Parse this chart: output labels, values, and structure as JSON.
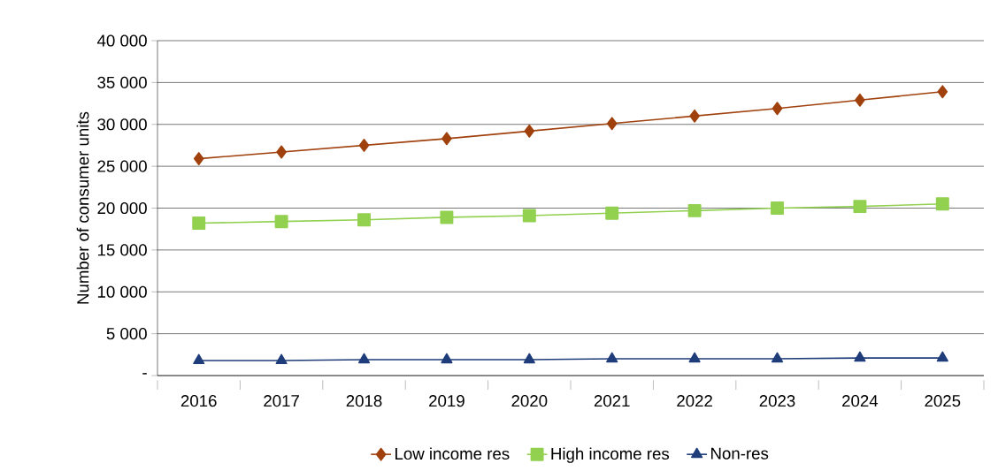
{
  "chart_data": {
    "type": "line",
    "ylabel": "Number of consumer units",
    "categories": [
      "2016",
      "2017",
      "2018",
      "2019",
      "2020",
      "2021",
      "2022",
      "2023",
      "2024",
      "2025"
    ],
    "series": [
      {
        "name": "Low income res",
        "color": "#a0410d",
        "marker": "diamond",
        "values": [
          25900,
          26700,
          27500,
          28300,
          29200,
          30100,
          31000,
          31900,
          32900,
          33900
        ]
      },
      {
        "name": "High income res",
        "color": "#92d050",
        "marker": "square",
        "values": [
          18200,
          18400,
          18600,
          18900,
          19100,
          19400,
          19700,
          20000,
          20200,
          20500
        ]
      },
      {
        "name": "Non-res",
        "color": "#1f3d7a",
        "marker": "triangle",
        "values": [
          1800,
          1800,
          1900,
          1900,
          1900,
          2000,
          2000,
          2000,
          2100,
          2100
        ]
      }
    ],
    "ylim": [
      0,
      40000
    ],
    "yticks": [
      {
        "value": 0,
        "label": "-"
      },
      {
        "value": 5000,
        "label": "5 000"
      },
      {
        "value": 10000,
        "label": "10 000"
      },
      {
        "value": 15000,
        "label": "15 000"
      },
      {
        "value": 20000,
        "label": "20 000"
      },
      {
        "value": 25000,
        "label": "25 000"
      },
      {
        "value": 30000,
        "label": "30 000"
      },
      {
        "value": 35000,
        "label": "35 000"
      },
      {
        "value": 40000,
        "label": "40 000"
      }
    ],
    "grid": "y",
    "legend": "bottom",
    "line_style": "solid"
  }
}
